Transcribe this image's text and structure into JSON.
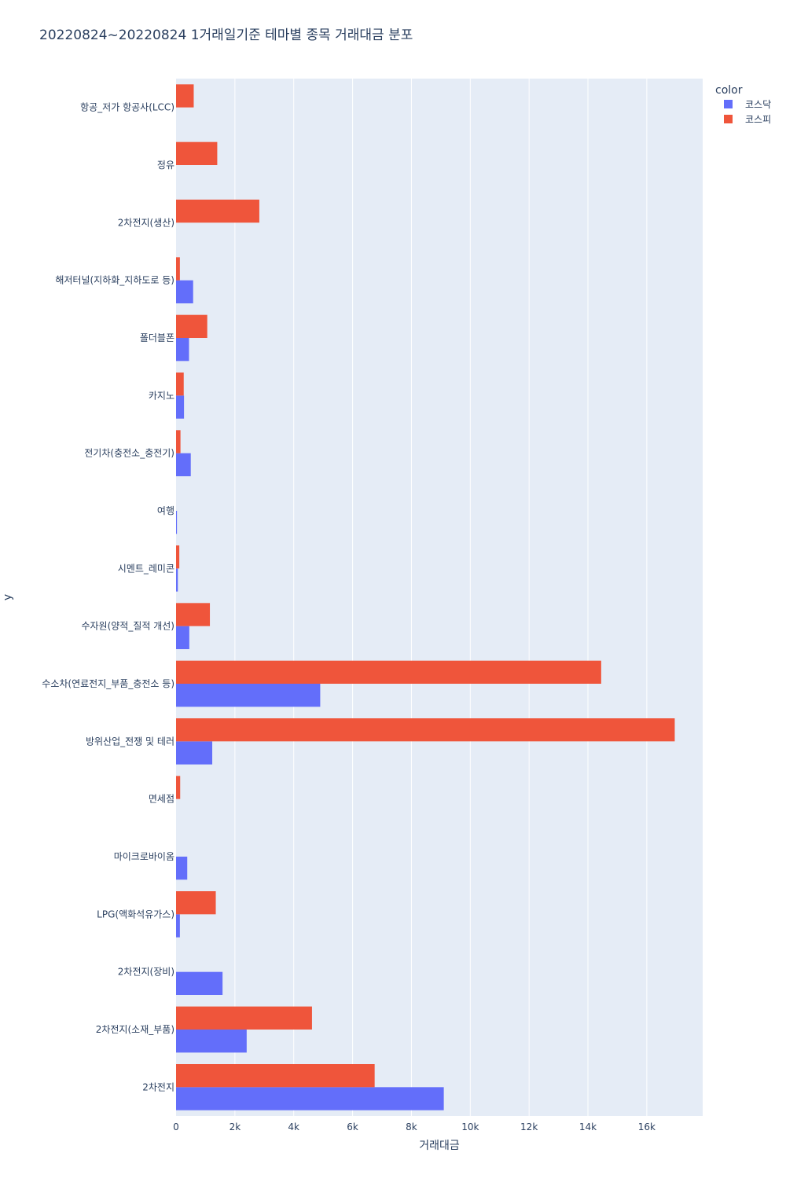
{
  "chart_data": {
    "type": "bar",
    "orientation": "horizontal",
    "title": "20220824~20220824 1거래일기준 테마별 종목 거래대금 분포",
    "xlabel": "거래대금",
    "ylabel": "y",
    "xlim": [
      0,
      17900
    ],
    "xticks": [
      0,
      2000,
      4000,
      6000,
      8000,
      10000,
      12000,
      14000,
      16000
    ],
    "xtick_labels": [
      "0",
      "2k",
      "4k",
      "6k",
      "8k",
      "10k",
      "12k",
      "14k",
      "16k"
    ],
    "categories": [
      "항공_저가 항공사(LCC)",
      "정유",
      "2차전지(생산)",
      "해저터널(지하화_지하도로 등)",
      "폴더블폰",
      "카지노",
      "전기차(충전소_충전기)",
      "여행",
      "시멘트_레미콘",
      "수자원(양적_질적 개선)",
      "수소차(연료전지_부품_충전소 등)",
      "방위산업_전쟁 및 테러",
      "면세점",
      "마이크로바이옴",
      "LPG(액화석유가스)",
      "2차전지(장비)",
      "2차전지(소재_부품)",
      "2차전지"
    ],
    "legend": {
      "title": "color",
      "position": "top-right"
    },
    "series": [
      {
        "name": "코스닥",
        "color": "#636efa",
        "values": [
          0,
          0,
          0,
          580,
          440,
          270,
          500,
          30,
          60,
          450,
          4900,
          1230,
          0,
          380,
          130,
          1580,
          2400,
          9100
        ]
      },
      {
        "name": "코스피",
        "color": "#ef553b",
        "values": [
          600,
          1400,
          2830,
          130,
          1060,
          260,
          150,
          0,
          110,
          1150,
          14450,
          16950,
          140,
          0,
          1350,
          0,
          4620,
          6750
        ]
      }
    ]
  }
}
